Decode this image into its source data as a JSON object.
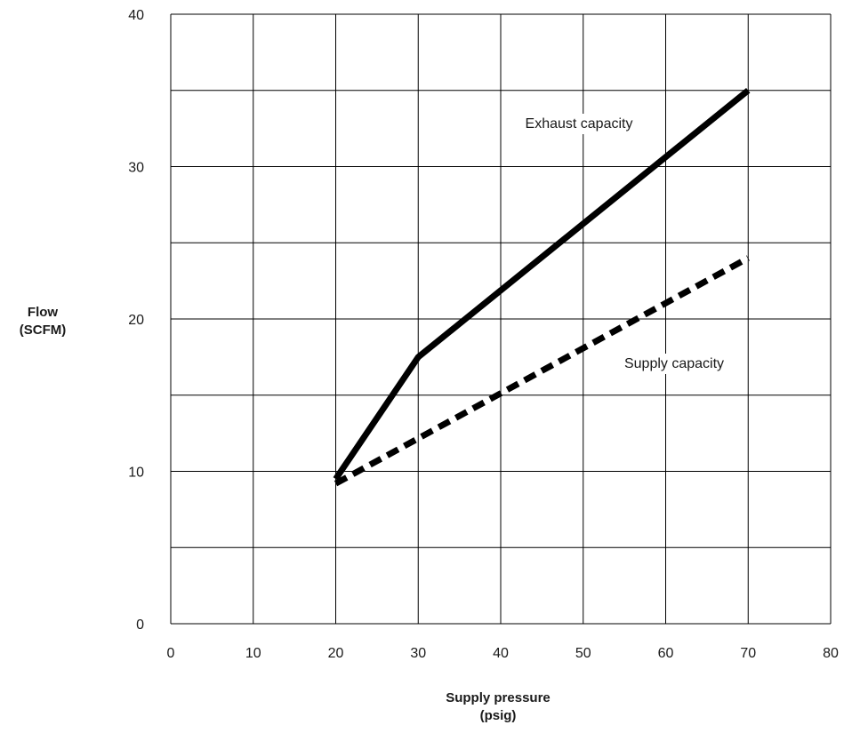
{
  "chart_data": {
    "type": "line",
    "xlabel": [
      "Supply pressure",
      "(psig)"
    ],
    "ylabel": [
      "Flow",
      "(SCFM)"
    ],
    "xlim": [
      0,
      80
    ],
    "ylim": [
      0,
      40
    ],
    "x_ticks": [
      0,
      10,
      20,
      30,
      40,
      50,
      60,
      70,
      80
    ],
    "y_ticks": [
      0,
      10,
      20,
      30,
      40
    ],
    "grid": true,
    "series": [
      {
        "name": "Exhaust capacity",
        "style": "solid",
        "color": "#000000",
        "points": [
          [
            20,
            9.5
          ],
          [
            30,
            17.5
          ],
          [
            70,
            35
          ]
        ]
      },
      {
        "name": "Supply capacity",
        "style": "dashed",
        "color": "#000000",
        "points": [
          [
            20,
            9.2
          ],
          [
            70,
            24
          ]
        ]
      }
    ]
  }
}
